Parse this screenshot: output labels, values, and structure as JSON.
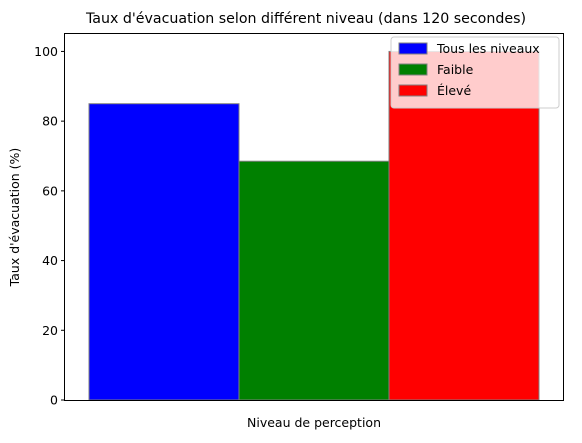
{
  "chart_data": {
    "type": "bar",
    "title": "Taux d'évacuation selon différent niveau (dans 120 secondes)",
    "xlabel": "Niveau de perception",
    "ylabel": "Taux d'évacuation (%)",
    "ylim": [
      0,
      105
    ],
    "yticks": [
      0,
      20,
      40,
      60,
      80,
      100
    ],
    "xticks": [],
    "grid": false,
    "legend_position": "top-right",
    "series": [
      {
        "name": "Tous les niveaux",
        "value": 85,
        "color": "#0000ff"
      },
      {
        "name": "Faible",
        "value": 68.5,
        "color": "#008000"
      },
      {
        "name": "Élevé",
        "value": 100,
        "color": "#ff0000"
      }
    ]
  }
}
